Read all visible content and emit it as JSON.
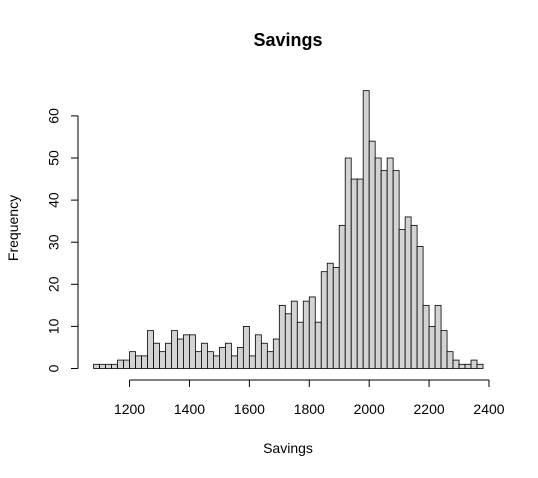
{
  "chart_data": {
    "type": "bar",
    "title": "Savings",
    "xlabel": "Savings",
    "ylabel": "Frequency",
    "xlim": [
      1080,
      2400
    ],
    "ylim": [
      0,
      66
    ],
    "x_ticks": [
      1200,
      1400,
      1600,
      1800,
      2000,
      2200,
      2400
    ],
    "y_ticks": [
      0,
      10,
      20,
      30,
      40,
      50,
      60
    ],
    "bin_start": 1080,
    "bin_width": 20,
    "frequencies": [
      1,
      1,
      1,
      1,
      2,
      2,
      4,
      3,
      3,
      9,
      6,
      4,
      6,
      9,
      7,
      8,
      8,
      4,
      6,
      4,
      3,
      5,
      6,
      3,
      5,
      10,
      3,
      8,
      6,
      4,
      7,
      15,
      13,
      16,
      11,
      16,
      17,
      11,
      23,
      25,
      24,
      34,
      50,
      45,
      45,
      66,
      54,
      50,
      47,
      50,
      47,
      33,
      36,
      34,
      29,
      15,
      10,
      15,
      9,
      4,
      2,
      1,
      1,
      2,
      1
    ],
    "bar_fill": "#d3d3d3",
    "bar_stroke": "#000000",
    "grid": false,
    "legend": "none"
  }
}
